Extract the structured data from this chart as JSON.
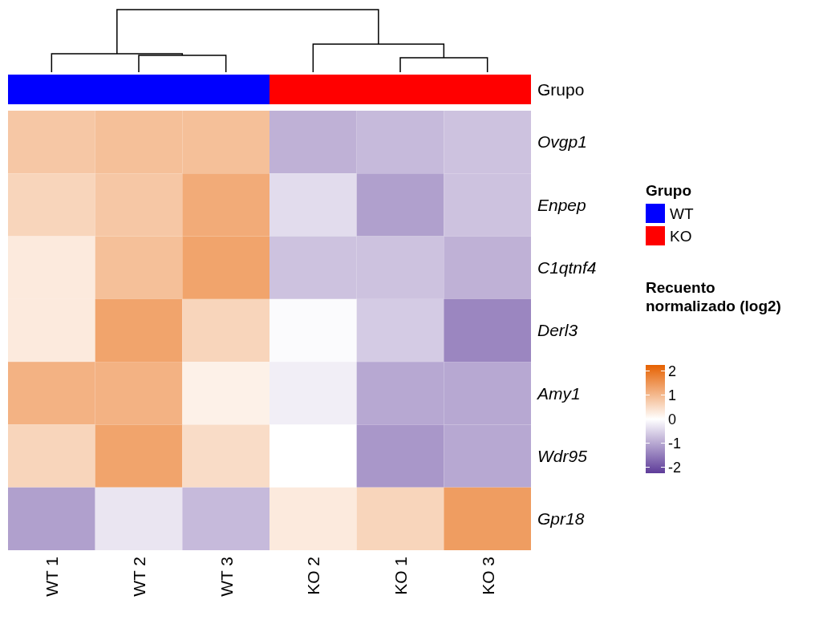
{
  "chart_data": {
    "type": "heatmap",
    "categories": [
      "WT 1",
      "WT 2",
      "WT 3",
      "KO 2",
      "KO 1",
      "KO 3"
    ],
    "y_categories": [
      "Ovgp1",
      "Enpep",
      "C1qtnf4",
      "Derl3",
      "Amy1",
      "Wdr95",
      "Gpr18"
    ],
    "cells": [
      [
        0.8,
        0.9,
        0.9,
        -0.9,
        -0.8,
        -0.7
      ],
      [
        0.6,
        0.8,
        1.2,
        -0.4,
        -1.1,
        -0.7
      ],
      [
        0.3,
        0.9,
        1.3,
        -0.7,
        -0.7,
        -0.9
      ],
      [
        0.3,
        1.3,
        0.6,
        -0.05,
        -0.6,
        -1.4
      ],
      [
        1.1,
        1.1,
        0.2,
        -0.2,
        -1.0,
        -1.0
      ],
      [
        0.6,
        1.3,
        0.5,
        0.0,
        -1.2,
        -1.0
      ],
      [
        -1.1,
        -0.3,
        -0.8,
        0.3,
        0.6,
        1.4
      ]
    ],
    "clim": [
      -2.25,
      2.25
    ],
    "cticks": [
      2,
      1,
      0,
      -1,
      -2
    ],
    "clabel": "Recuento normalizado (log2)",
    "legend_title": "Grupo",
    "annotations": [
      "WT",
      "KO"
    ]
  }
}
